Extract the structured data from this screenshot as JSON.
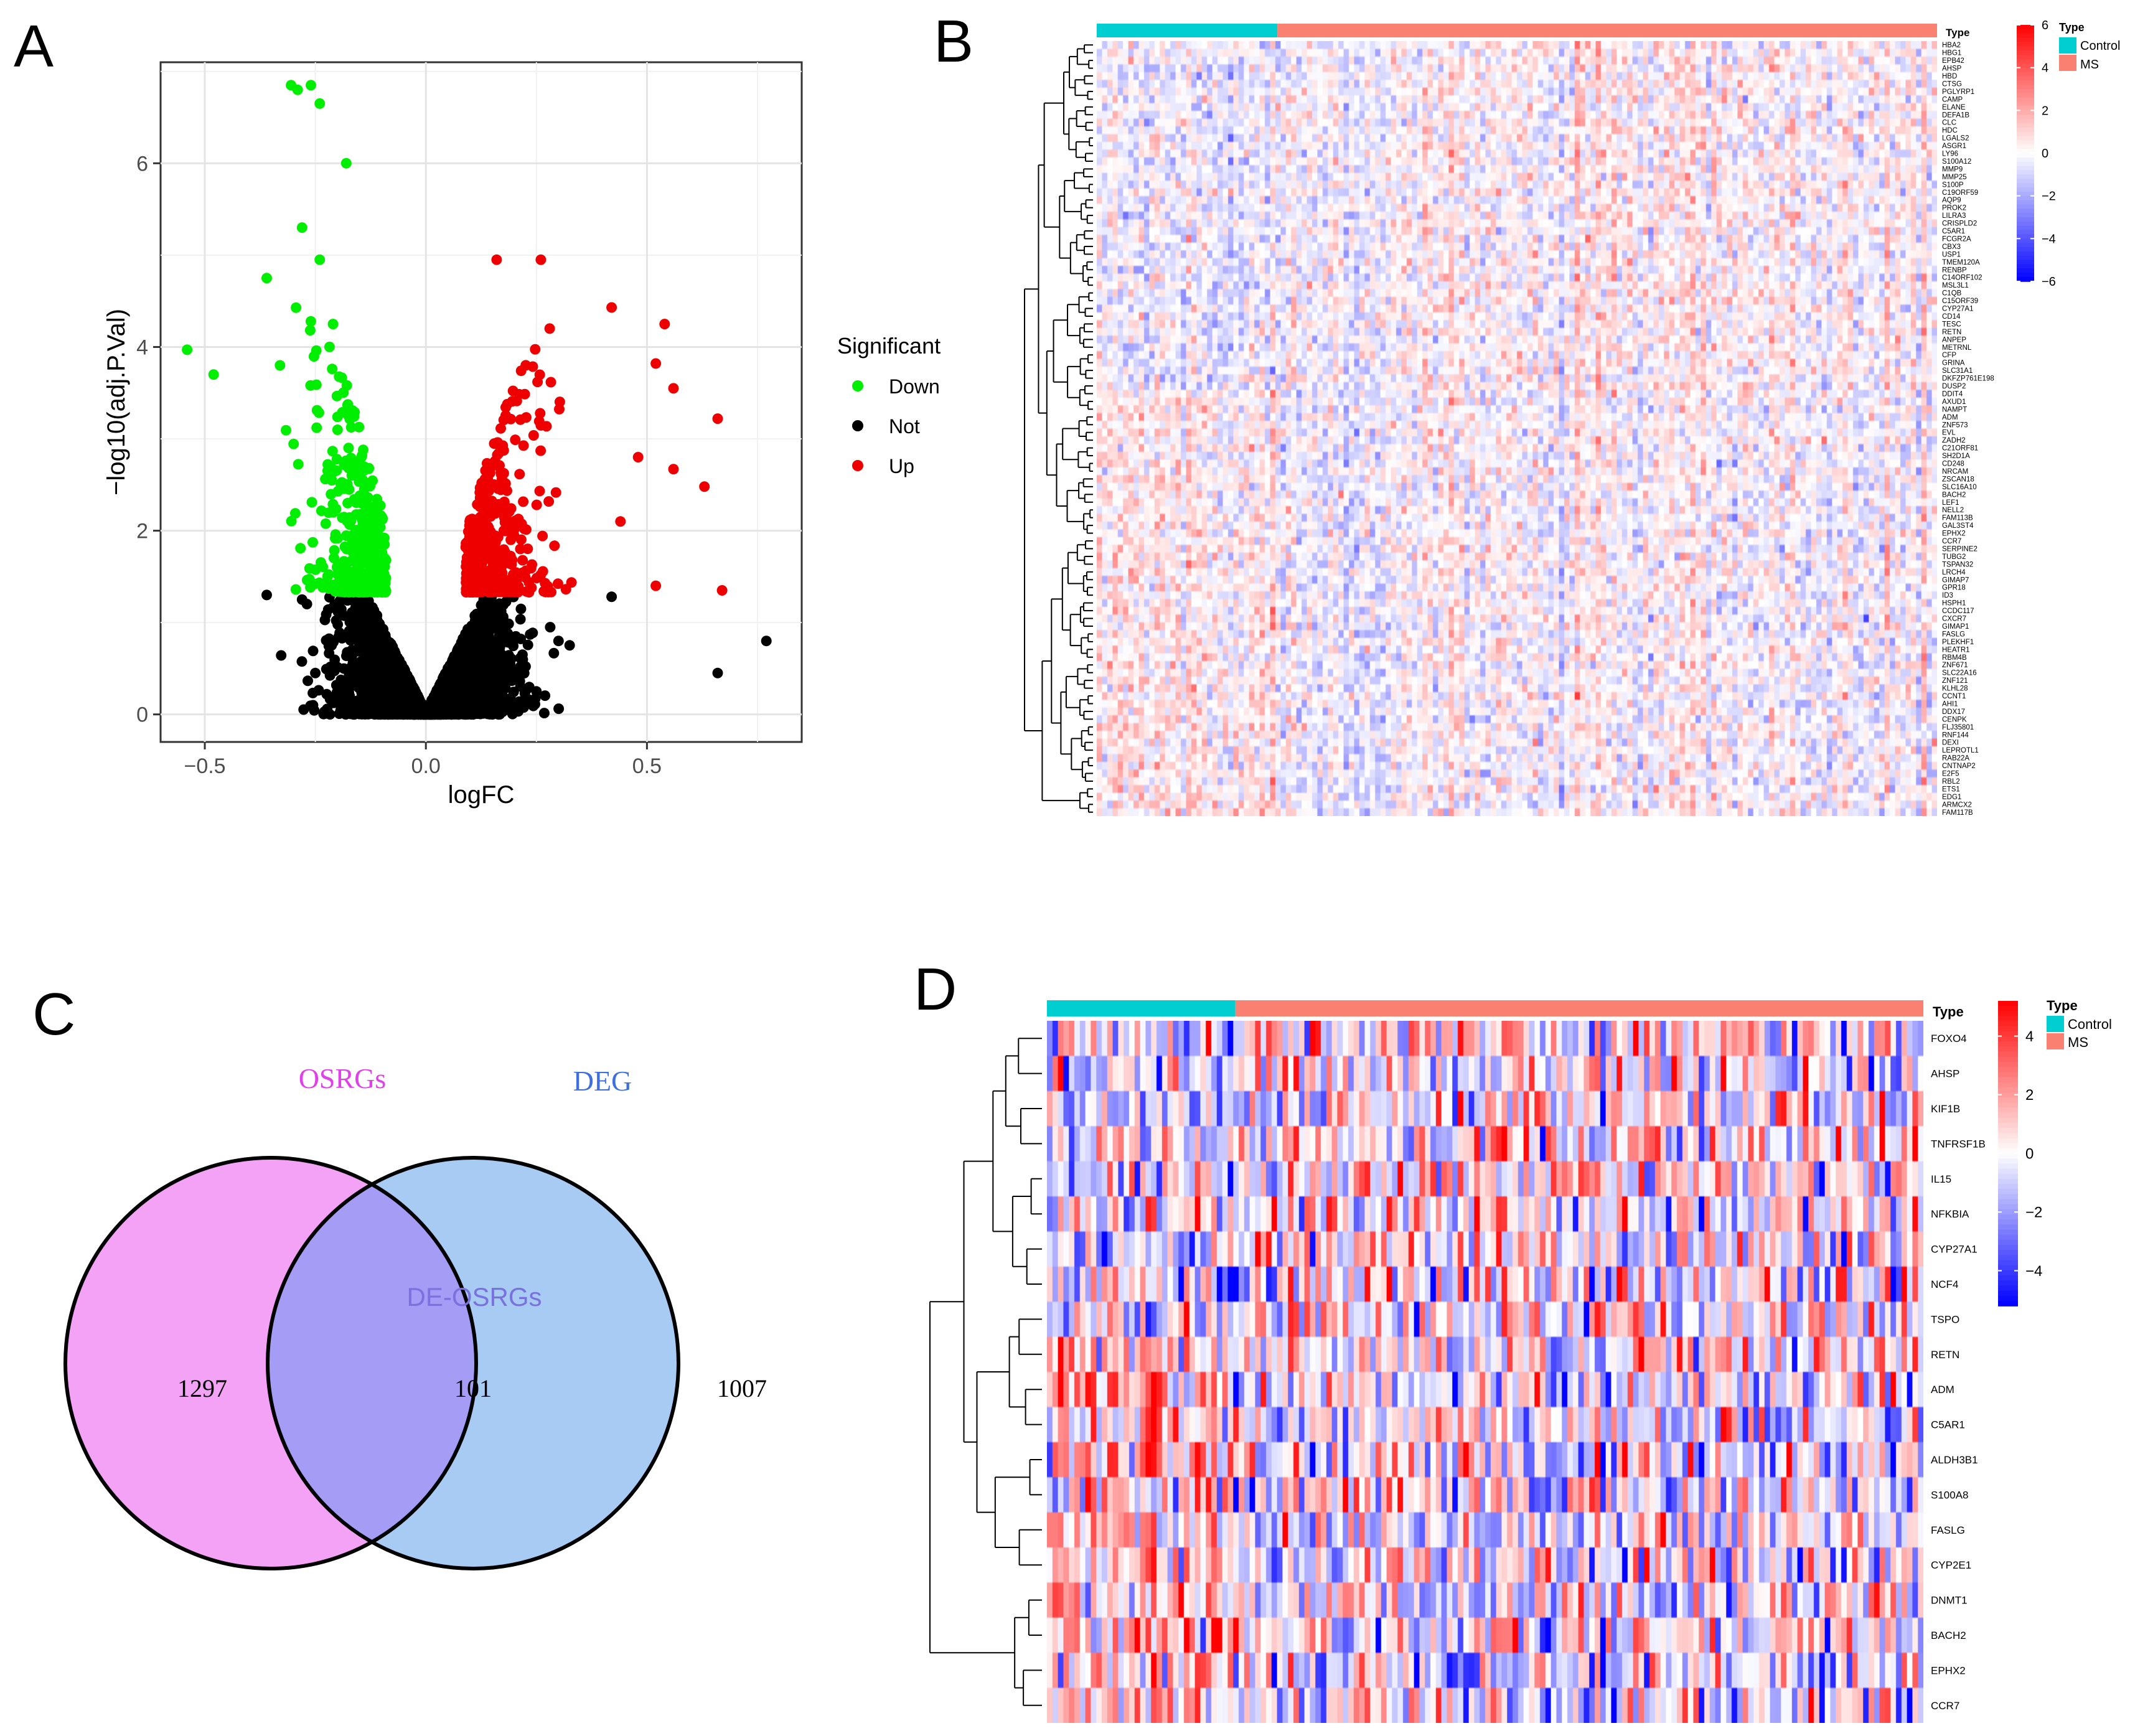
{
  "panels": {
    "A": {
      "label": "A"
    },
    "B": {
      "label": "B"
    },
    "C": {
      "label": "C"
    },
    "D": {
      "label": "D"
    }
  },
  "colors": {
    "down": "#00ee00",
    "not": "#000000",
    "up": "#ee0000",
    "control": "#00ced1",
    "ms": "#fa8072",
    "heat_low": "#0000ff",
    "heat_mid": "#ffffff",
    "heat_high": "#ff0000",
    "venn_left": "#f4a2f6",
    "venn_right": "#a8cbf4",
    "venn_overlap": "#a59cf5",
    "osrgs_label": "#e040e8",
    "deg_label": "#3d6fe0",
    "de_label": "#7a70e0"
  },
  "chart_data": [
    {
      "id": "A",
      "type": "scatter",
      "title": "",
      "xlabel": "logFC",
      "ylabel": "−log10(adj.P.Val)",
      "xlim": [
        -0.6,
        0.85
      ],
      "ylim": [
        -0.3,
        7.1
      ],
      "xticks": [
        -0.5,
        0.0,
        0.5
      ],
      "xtick_labels": [
        "−0.5",
        "0.0",
        "0.5"
      ],
      "yticks": [
        0,
        2,
        4,
        6
      ],
      "ytick_labels": [
        "0",
        "2",
        "4",
        "6"
      ],
      "grid": true,
      "legend": {
        "title": "Significant",
        "position": "right",
        "entries": [
          "Down",
          "Not",
          "Up"
        ]
      },
      "series": [
        {
          "name": "Down",
          "approx_count": 480,
          "highlight_points": [
            [
              -0.305,
              6.85
            ],
            [
              -0.29,
              6.8
            ],
            [
              -0.26,
              6.85
            ],
            [
              -0.24,
              6.65
            ],
            [
              -0.18,
              6.0
            ],
            [
              -0.28,
              5.3
            ],
            [
              -0.36,
              4.75
            ],
            [
              -0.54,
              3.97
            ],
            [
              -0.48,
              3.7
            ],
            [
              -0.21,
              4.25
            ],
            [
              -0.33,
              3.8
            ],
            [
              -0.24,
              4.95
            ]
          ]
        },
        {
          "name": "Not",
          "approx_count": 4000,
          "highlight_points": [
            [
              -0.36,
              1.3
            ],
            [
              -0.28,
              1.25
            ],
            [
              -0.25,
              0.45
            ],
            [
              -0.12,
              0.3
            ],
            [
              0.25,
              0.25
            ],
            [
              0.3,
              0.8
            ],
            [
              0.42,
              1.28
            ],
            [
              0.66,
              0.45
            ],
            [
              0.77,
              0.8
            ]
          ]
        },
        {
          "name": "Up",
          "approx_count": 460,
          "highlight_points": [
            [
              0.16,
              4.95
            ],
            [
              0.26,
              4.95
            ],
            [
              0.42,
              4.43
            ],
            [
              0.54,
              4.25
            ],
            [
              0.52,
              3.82
            ],
            [
              0.56,
              3.55
            ],
            [
              0.66,
              3.22
            ],
            [
              0.56,
              2.67
            ],
            [
              0.63,
              2.48
            ],
            [
              0.48,
              2.8
            ],
            [
              0.52,
              1.4
            ],
            [
              0.67,
              1.35
            ],
            [
              0.28,
              4.2
            ],
            [
              0.44,
              2.1
            ]
          ]
        }
      ]
    },
    {
      "id": "B",
      "type": "heatmap",
      "annotation_title": "Type",
      "annotation_groups": [
        "Control",
        "MS"
      ],
      "control_fraction": 0.215,
      "n_samples": 160,
      "colorbar_ticks": [
        6,
        4,
        2,
        0,
        -2,
        -4,
        -6
      ],
      "colorbar_tick_labels": [
        "6",
        "4",
        "2",
        "0",
        "−2",
        "−4",
        "−6"
      ],
      "rows": [
        "HBA2",
        "HBG1",
        "EPB42",
        "AHSP",
        "HBD",
        "CTSG",
        "PGLYRP1",
        "CAMP",
        "ELANE",
        "DEFA1B",
        "CLC",
        "HDC",
        "LGALS2",
        "ASGR1",
        "LY96",
        "S100A12",
        "MMP9",
        "MMP25",
        "S100P",
        "C19ORF59",
        "AQP9",
        "PROK2",
        "LILRA3",
        "CRISPLD2",
        "C5AR1",
        "FCGR2A",
        "CBX3",
        "USP1",
        "TMEM120A",
        "RENBP",
        "C14ORF102",
        "MSL3L1",
        "C1QB",
        "C15ORF39",
        "CYP27A1",
        "CD14",
        "TESC",
        "RETN",
        "ANPEP",
        "METRNL",
        "CFP",
        "GRINA",
        "SLC31A1",
        "DKFZP761E198",
        "DUSP2",
        "DDIT4",
        "AXUD1",
        "NAMPT",
        "ADM",
        "ZNF573",
        "EVL",
        "ZADH2",
        "C21ORF81",
        "SH2D1A",
        "CD248",
        "NRCAM",
        "ZSCAN18",
        "SLC16A10",
        "BACH2",
        "LEF1",
        "NELL2",
        "FAM113B",
        "GAL3ST4",
        "EPHX2",
        "CCR7",
        "SERPINE2",
        "TUBG2",
        "TSPAN32",
        "LRCH4",
        "GIMAP7",
        "GPR18",
        "ID3",
        "HSPH1",
        "CCDC117",
        "CXCR7",
        "GIMAP1",
        "FASLG",
        "PLEKHF1",
        "HEATR1",
        "RBM4B",
        "ZNF671",
        "SLC22A16",
        "ZNF121",
        "KLHL28",
        "CCNT1",
        "AHI1",
        "DDX17",
        "CENPK",
        "FLJ35801",
        "RNF144",
        "DEXI",
        "LEPROTL1",
        "RAB22A",
        "CNTNAP2",
        "E2F5",
        "RBL2",
        "ETS1",
        "EDG1",
        "ARMCX2",
        "FAM117B"
      ]
    },
    {
      "id": "C",
      "type": "venn",
      "sets": [
        {
          "name": "OSRGs",
          "only": 1297
        },
        {
          "name": "DEG",
          "only": 1007
        }
      ],
      "intersection": {
        "name": "DE-OSRGs",
        "count": 101
      }
    },
    {
      "id": "D",
      "type": "heatmap",
      "annotation_title": "Type",
      "annotation_groups": [
        "Control",
        "MS"
      ],
      "control_fraction": 0.215,
      "n_samples": 160,
      "colorbar_ticks": [
        4,
        2,
        0,
        -2,
        -4
      ],
      "colorbar_tick_labels": [
        "4",
        "2",
        "0",
        "−2",
        "−4"
      ],
      "rows": [
        "FOXO4",
        "AHSP",
        "KIF1B",
        "TNFRSF1B",
        "IL15",
        "NFKBIA",
        "CYP27A1",
        "NCF4",
        "TSPO",
        "RETN",
        "ADM",
        "C5AR1",
        "ALDH3B1",
        "S100A8",
        "FASLG",
        "CYP2E1",
        "DNMT1",
        "BACH2",
        "EPHX2",
        "CCR7"
      ]
    }
  ]
}
